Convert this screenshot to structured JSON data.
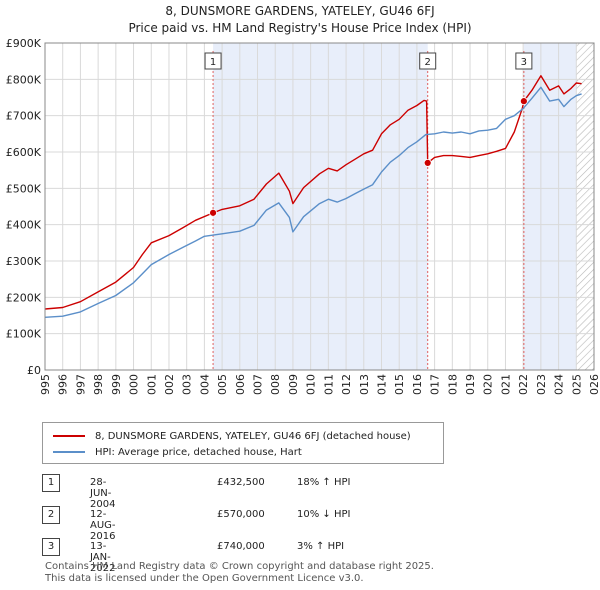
{
  "header": {
    "title": "8, DUNSMORE GARDENS, YATELEY, GU46 6FJ",
    "subtitle": "Price paid vs. HM Land Registry's House Price Index (HPI)"
  },
  "chart_data": {
    "type": "line",
    "title": "8, DUNSMORE GARDENS, YATELEY, GU46 6FJ",
    "subtitle": "Price paid vs. HM Land Registry's House Price Index (HPI)",
    "xlim": [
      1995,
      2026
    ],
    "ylim": [
      0,
      900000
    ],
    "y_ticks": [
      0,
      100000,
      200000,
      300000,
      400000,
      500000,
      600000,
      700000,
      800000,
      900000
    ],
    "y_tick_labels": [
      "£0",
      "£100K",
      "£200K",
      "£300K",
      "£400K",
      "£500K",
      "£600K",
      "£700K",
      "£800K",
      "£900K"
    ],
    "x_ticks": [
      1995,
      1996,
      1997,
      1998,
      1999,
      2000,
      2001,
      2002,
      2003,
      2004,
      2005,
      2006,
      2007,
      2008,
      2009,
      2010,
      2011,
      2012,
      2013,
      2014,
      2015,
      2016,
      2017,
      2018,
      2019,
      2020,
      2021,
      2022,
      2023,
      2024,
      2025,
      2026
    ],
    "grid": true,
    "shaded_regions": [
      [
        2004.49,
        2016.61
      ],
      [
        2022.04,
        2025.0
      ]
    ],
    "hatched_region": [
      2025.0,
      2026
    ],
    "colors": {
      "property": "#cc0000",
      "hpi": "#5b8fc9",
      "shade": "#e8eefa",
      "marker_line": "#e06060"
    },
    "series": [
      {
        "name": "8, DUNSMORE GARDENS, YATELEY, GU46 6FJ (detached house)",
        "color": "#cc0000",
        "x": [
          1995,
          1996,
          1997,
          1998,
          1999,
          2000,
          2000.5,
          2001,
          2002,
          2002.8,
          2003.5,
          2004.49,
          2005,
          2006,
          2006.8,
          2007.5,
          2008.2,
          2008.8,
          2009,
          2009.6,
          2010.5,
          2011,
          2011.5,
          2012,
          2012.5,
          2013,
          2013.5,
          2014,
          2014.5,
          2015,
          2015.5,
          2016,
          2016.4,
          2016.55,
          2016.61,
          2017,
          2017.5,
          2018,
          2018.5,
          2019,
          2019.5,
          2020,
          2020.5,
          2021,
          2021.5,
          2021.95,
          2022.04,
          2022.5,
          2023,
          2023.5,
          2024,
          2024.3,
          2024.7,
          2025,
          2025.3
        ],
        "values": [
          168000,
          172000,
          188000,
          215000,
          242000,
          282000,
          318000,
          350000,
          370000,
          392000,
          412000,
          432500,
          442000,
          452000,
          470000,
          512000,
          542000,
          492000,
          458000,
          502000,
          540000,
          555000,
          548000,
          565000,
          580000,
          595000,
          605000,
          650000,
          675000,
          690000,
          715000,
          728000,
          742000,
          740000,
          570000,
          585000,
          590000,
          590000,
          588000,
          585000,
          590000,
          595000,
          602000,
          610000,
          655000,
          720000,
          740000,
          770000,
          810000,
          770000,
          782000,
          760000,
          775000,
          790000,
          788000
        ]
      },
      {
        "name": "HPI: Average price, detached house, Hart",
        "color": "#5b8fc9",
        "x": [
          1995,
          1996,
          1997,
          1998,
          1999,
          2000,
          2000.5,
          2001,
          2002,
          2002.8,
          2003.5,
          2004,
          2005,
          2006,
          2006.8,
          2007.5,
          2008.2,
          2008.8,
          2009,
          2009.6,
          2010.5,
          2011,
          2011.5,
          2012,
          2012.5,
          2013,
          2013.5,
          2014,
          2014.5,
          2015,
          2015.5,
          2016,
          2016.5,
          2017,
          2017.5,
          2018,
          2018.5,
          2019,
          2019.5,
          2020,
          2020.5,
          2021,
          2021.5,
          2022,
          2022.5,
          2023,
          2023.5,
          2024,
          2024.3,
          2024.7,
          2025,
          2025.3
        ],
        "values": [
          145000,
          148000,
          160000,
          183000,
          205000,
          240000,
          265000,
          290000,
          318000,
          338000,
          355000,
          368000,
          375000,
          382000,
          398000,
          440000,
          460000,
          420000,
          380000,
          422000,
          458000,
          470000,
          462000,
          472000,
          485000,
          498000,
          510000,
          545000,
          572000,
          590000,
          612000,
          628000,
          648000,
          650000,
          655000,
          652000,
          655000,
          650000,
          658000,
          660000,
          665000,
          690000,
          700000,
          720000,
          748000,
          778000,
          740000,
          745000,
          725000,
          745000,
          755000,
          760000
        ]
      }
    ],
    "transactions": [
      {
        "id": "1",
        "x": 2004.49,
        "value": 432500
      },
      {
        "id": "2",
        "x": 2016.61,
        "value": 570000
      },
      {
        "id": "3",
        "x": 2022.04,
        "value": 740000
      }
    ]
  },
  "legend": {
    "property_label": "8, DUNSMORE GARDENS, YATELEY, GU46 6FJ (detached house)",
    "hpi_label": "HPI: Average price, detached house, Hart"
  },
  "table": [
    {
      "id": "1",
      "date": "28-JUN-2004",
      "price": "£432,500",
      "hpi": "18% ↑ HPI"
    },
    {
      "id": "2",
      "date": "12-AUG-2016",
      "price": "£570,000",
      "hpi": "10% ↓ HPI"
    },
    {
      "id": "3",
      "date": "13-JAN-2022",
      "price": "£740,000",
      "hpi": "3% ↑ HPI"
    }
  ],
  "footer": {
    "line1": "Contains HM Land Registry data © Crown copyright and database right 2025.",
    "line2": "This data is licensed under the Open Government Licence v3.0."
  }
}
